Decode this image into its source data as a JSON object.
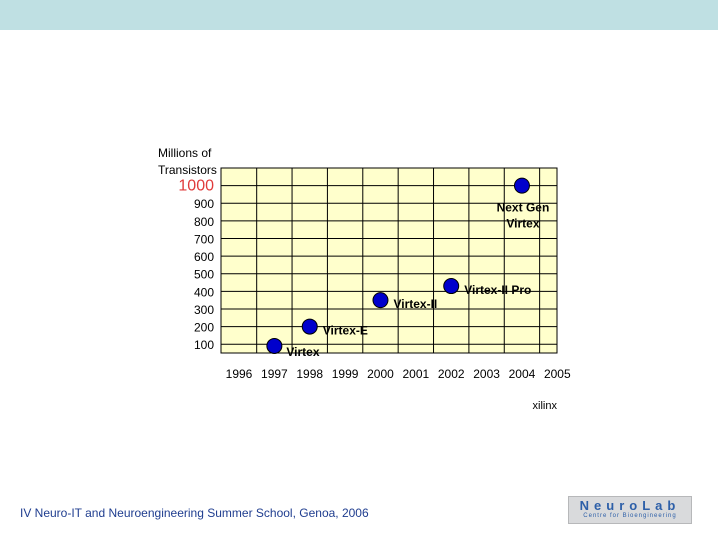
{
  "slide": {
    "footer": "IV Neuro-IT and Neuroengineering Summer School, Genoa, 2006",
    "logo_main": "NeuroLab",
    "logo_sub": "Centre for Bioengineering",
    "source": "xilinx"
  },
  "colors": {
    "band": "#bfe0e3",
    "plot_bg": "#ffffcc",
    "grid": "#000000",
    "point": "#0000cc",
    "highlight": "#e03b3b"
  },
  "chart_data": {
    "type": "scatter",
    "ylabel_lines": [
      "Millions of",
      "Transistors"
    ],
    "y_ticks": [
      "100",
      "200",
      "300",
      "400",
      "500",
      "600",
      "700",
      "800",
      "900",
      "1000"
    ],
    "highlight_tick": "1000",
    "x_ticks": [
      "1996",
      "1997",
      "1998",
      "1999",
      "2000",
      "2001",
      "2002",
      "2003",
      "2004",
      "2005"
    ],
    "ylim": [
      50,
      1100
    ],
    "grid": true,
    "points": [
      {
        "x": 1997,
        "y": 90,
        "label_lines": [
          "Virtex"
        ]
      },
      {
        "x": 1998,
        "y": 200,
        "label_lines": [
          "Virtex-E"
        ]
      },
      {
        "x": 2000,
        "y": 350,
        "label_lines": [
          "Virtex-II"
        ]
      },
      {
        "x": 2002,
        "y": 430,
        "label_lines": [
          "Virtex-II Pro"
        ]
      },
      {
        "x": 2004,
        "y": 1000,
        "label_lines": [
          "Next Gen",
          "Virtex"
        ]
      }
    ]
  }
}
